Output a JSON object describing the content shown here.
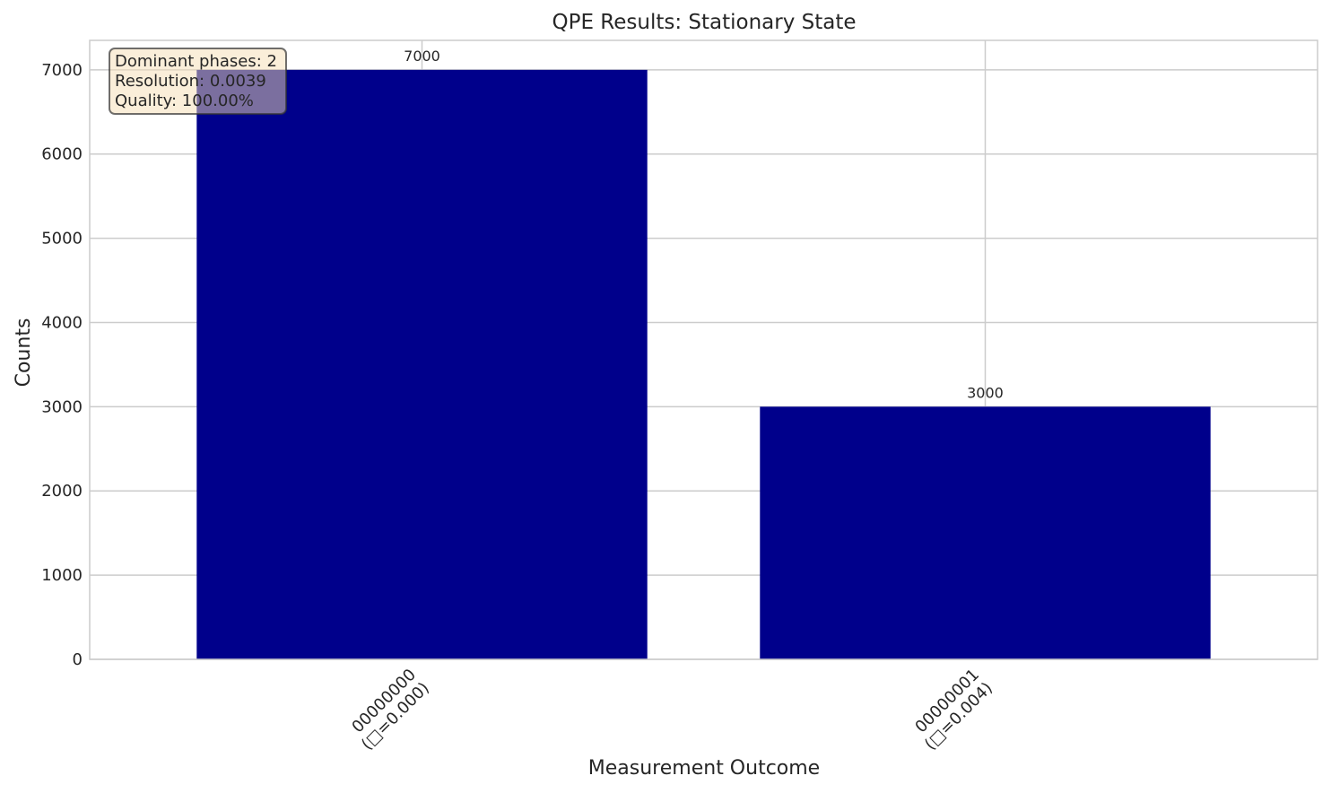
{
  "chart_data": {
    "type": "bar",
    "title": "QPE Results: Stationary State",
    "xlabel": "Measurement Outcome",
    "ylabel": "Counts",
    "categories": [
      "00000000\n(□=0.000)",
      "00000001\n(□=0.004)"
    ],
    "values": [
      7000,
      3000
    ],
    "bar_labels": [
      "7000",
      "3000"
    ],
    "ylim": [
      0,
      7350
    ],
    "yticks": [
      0,
      1000,
      2000,
      3000,
      4000,
      5000,
      6000,
      7000
    ],
    "grid": true,
    "bar_color": "#00008b",
    "annotation": {
      "lines": [
        "Dominant phases: 2",
        "Resolution: 0.0039",
        "Quality: 100.00%"
      ],
      "placement": "top-left",
      "background": "#f5deb3",
      "text_color": "#262626"
    }
  }
}
